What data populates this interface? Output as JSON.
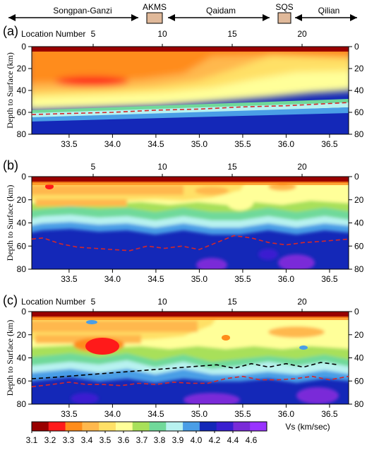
{
  "chart_data": {
    "type": "heatmap",
    "colors": {
      "red_dashed": "#d62728",
      "black_dashed": "#000000",
      "block_box": "#e0b99a"
    },
    "terranes": [
      {
        "label": "Songpan-Ganzi",
        "kind": "arrow"
      },
      {
        "label": "AKMS",
        "kind": "box"
      },
      {
        "label": "Qaidam",
        "kind": "arrow"
      },
      {
        "label": "SQS",
        "kind": "box"
      },
      {
        "label": "Qilian",
        "kind": "arrow"
      }
    ],
    "panels": [
      {
        "letter": "(a)",
        "top_axis_label": "Location Number",
        "ylabel": "Depth to Surface (km)",
        "ylim": [
          0,
          80
        ],
        "yticks": [
          "0",
          "20",
          "40",
          "60",
          "80"
        ],
        "xlim": [
          33.07,
          36.72
        ],
        "xticks": [
          "33.5",
          "34.0",
          "34.5",
          "35.0",
          "35.5",
          "36.0",
          "36.5"
        ],
        "top_ticks": [
          "5",
          "10",
          "15",
          "20"
        ],
        "moho_red": {
          "x": [
            33.07,
            33.5,
            34.0,
            34.5,
            35.0,
            35.5,
            36.0,
            36.72
          ],
          "y": [
            62,
            61,
            60,
            58,
            57,
            55,
            54,
            51
          ]
        }
      },
      {
        "letter": "(b)",
        "top_axis_label": "",
        "ylabel": "Depth to Surface (km)",
        "ylim": [
          0,
          80
        ],
        "yticks": [
          "0",
          "20",
          "40",
          "60",
          "80"
        ],
        "xlim": [
          33.07,
          36.72
        ],
        "xticks": [
          "33.5",
          "34.0",
          "34.5",
          "35.0",
          "35.5",
          "36.0",
          "36.5"
        ],
        "top_ticks": [
          "5",
          "10",
          "15",
          "20"
        ],
        "moho_red": {
          "x": [
            33.07,
            33.2,
            33.4,
            33.6,
            33.8,
            34.0,
            34.2,
            34.4,
            34.6,
            34.8,
            35.0,
            35.2,
            35.4,
            35.6,
            35.8,
            36.0,
            36.2,
            36.4,
            36.72
          ],
          "y": [
            54,
            53,
            58,
            61,
            62,
            63,
            64,
            60,
            62,
            60,
            63,
            57,
            51,
            53,
            57,
            59,
            57,
            56,
            54
          ]
        }
      },
      {
        "letter": "(c)",
        "top_axis_label": "Location Number",
        "ylabel": "Depth to Surface (km)",
        "ylim": [
          0,
          80
        ],
        "yticks": [
          "0",
          "20",
          "40",
          "60",
          "80"
        ],
        "xlim": [
          33.07,
          36.72
        ],
        "xticks": [
          "33.5",
          "34.0",
          "34.5",
          "35.0",
          "35.5",
          "36.0",
          "36.5"
        ],
        "top_ticks": [
          "5",
          "10",
          "15",
          "20"
        ],
        "moho_red": {
          "x": [
            33.07,
            33.3,
            33.5,
            33.7,
            33.9,
            34.1,
            34.3,
            34.5,
            34.7,
            34.9,
            35.1,
            35.3,
            35.5,
            35.7,
            35.9,
            36.1,
            36.3,
            36.5,
            36.72
          ],
          "y": [
            65,
            63,
            61,
            63,
            63,
            64,
            62,
            63,
            61,
            62,
            62,
            58,
            56,
            59,
            59,
            58,
            56,
            59,
            56
          ]
        },
        "moho_black": {
          "x": [
            33.07,
            33.3,
            35.2,
            35.4,
            35.6,
            35.8,
            36.0,
            36.2,
            36.4,
            36.6
          ],
          "y": [
            58,
            57,
            46,
            49,
            45,
            48,
            45,
            48,
            44,
            46
          ]
        }
      }
    ],
    "colorbar": {
      "label": "Vs (km/sec)",
      "ticks": [
        "3.1",
        "3.2",
        "3.3",
        "3.4",
        "3.5",
        "3.6",
        "3.7",
        "3.8",
        "3.9",
        "4.0",
        "4.2",
        "4.4",
        "4.6"
      ],
      "colors": [
        "#990000",
        "#ff1a1a",
        "#ff8c1a",
        "#ffb84d",
        "#ffe066",
        "#ffff99",
        "#a8e05a",
        "#70d99a",
        "#b8f2f0",
        "#4a9ee6",
        "#1428b8",
        "#3a1fd0",
        "#7a2bd8",
        "#9933ff"
      ]
    }
  }
}
